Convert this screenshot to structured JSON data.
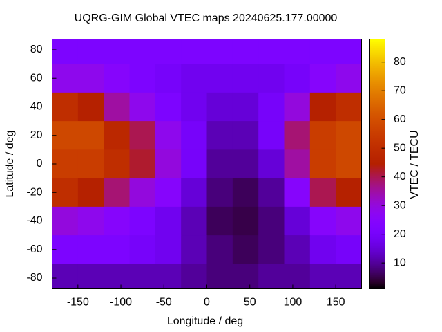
{
  "chart_data": {
    "type": "heatmap",
    "title": "UQRG-GIM Global VTEC maps 20240625.177.00000",
    "x_label": "Longitude / deg",
    "y_label": "Latitude / deg",
    "colorbar_label": "VTEC / TECU",
    "palette": "gnuplot",
    "x_edges": [
      -180,
      -150,
      -120,
      -90,
      -60,
      -30,
      0,
      30,
      60,
      90,
      120,
      150,
      180
    ],
    "y_edges": [
      87.5,
      70,
      50,
      30,
      10,
      -10,
      -30,
      -50,
      -70,
      -87.5
    ],
    "values": [
      [
        22,
        22,
        22,
        22,
        22,
        22,
        22,
        22,
        22,
        22,
        22,
        22
      ],
      [
        28,
        28,
        25,
        22,
        20,
        18,
        18,
        18,
        18,
        20,
        25,
        28
      ],
      [
        50,
        45,
        35,
        28,
        22,
        18,
        15,
        15,
        20,
        30,
        45,
        50
      ],
      [
        58,
        58,
        48,
        40,
        28,
        20,
        12,
        12,
        20,
        38,
        55,
        58
      ],
      [
        55,
        55,
        50,
        42,
        30,
        20,
        10,
        10,
        15,
        35,
        55,
        58
      ],
      [
        50,
        45,
        38,
        30,
        25,
        15,
        8,
        6,
        10,
        25,
        40,
        45
      ],
      [
        30,
        28,
        25,
        22,
        18,
        12,
        6,
        5,
        8,
        15,
        25,
        28
      ],
      [
        22,
        22,
        22,
        20,
        18,
        12,
        8,
        6,
        8,
        12,
        18,
        20
      ],
      [
        12,
        12,
        12,
        12,
        12,
        10,
        8,
        8,
        10,
        10,
        12,
        12
      ]
    ],
    "xlim": [
      -180,
      180
    ],
    "ylim": [
      -87.5,
      87.5
    ],
    "zlim": [
      1,
      88
    ],
    "xticks": [
      -150,
      -100,
      -50,
      0,
      50,
      100,
      150
    ],
    "yticks": [
      -80,
      -60,
      -40,
      -20,
      0,
      20,
      40,
      60,
      80
    ],
    "zticks": [
      10,
      20,
      30,
      40,
      50,
      60,
      70,
      80
    ]
  }
}
